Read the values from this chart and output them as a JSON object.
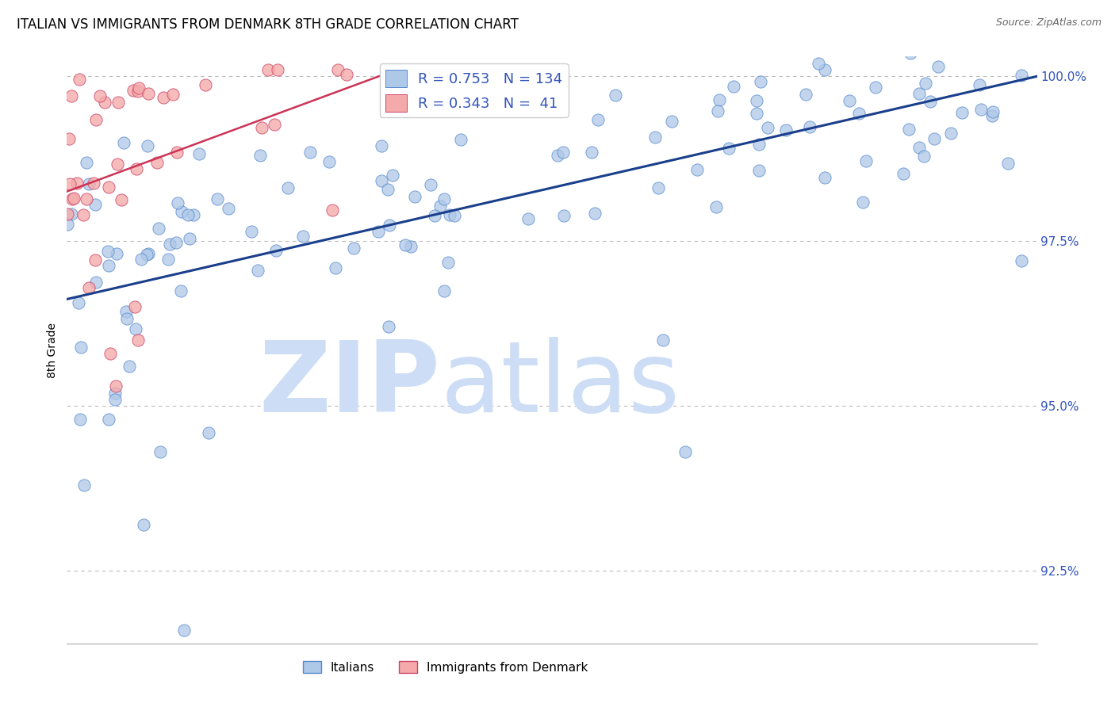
{
  "title": "ITALIAN VS IMMIGRANTS FROM DENMARK 8TH GRADE CORRELATION CHART",
  "source": "Source: ZipAtlas.com",
  "ylabel": "8th Grade",
  "xlim": [
    0.0,
    1.0
  ],
  "ylim": [
    0.914,
    1.003
  ],
  "yticks": [
    0.925,
    0.95,
    0.975,
    1.0
  ],
  "ytick_labels": [
    "92.5%",
    "95.0%",
    "97.5%",
    "100.0%"
  ],
  "blue_R": 0.753,
  "blue_N": 134,
  "pink_R": 0.343,
  "pink_N": 41,
  "background_color": "#ffffff",
  "grid_color": "#bbbbbb",
  "scatter_blue_color": "#aec8e8",
  "scatter_blue_edge": "#5588cc",
  "scatter_pink_color": "#f4aaaa",
  "scatter_pink_edge": "#cc4466",
  "line_blue_color": "#1a3f8c",
  "line_pink_color": "#cc3355",
  "watermark_zip_color": "#ccddf5",
  "watermark_atlas_color": "#ccddf5",
  "title_fontsize": 12,
  "axis_label_fontsize": 10,
  "legend_fontsize": 13,
  "marker_size": 120
}
